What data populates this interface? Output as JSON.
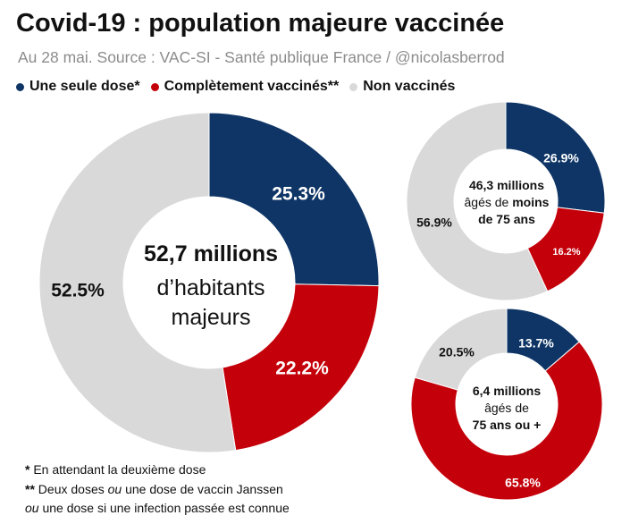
{
  "title": "Covid-19 : population majeure vaccinée",
  "subtitle": "Au 28 mai. Source : VAC-SI - Santé publique France / @nicolasberrod",
  "legend": [
    {
      "label": "Une seule dose*",
      "color": "#0e3566"
    },
    {
      "label": "Complètement vaccinés**",
      "color": "#c4000a"
    },
    {
      "label": "Non vaccinés",
      "color": "#d9d9d9"
    }
  ],
  "colors": {
    "single": "#0e3566",
    "full": "#c4000a",
    "none": "#d9d9d9"
  },
  "chart_data": [
    {
      "type": "pie",
      "name": "total",
      "center_label": [
        "52,7 millions",
        "d’habitants",
        "majeurs"
      ],
      "categories": [
        "Une seule dose*",
        "Complètement vaccinés**",
        "Non vaccinés"
      ],
      "values": [
        25.3,
        22.2,
        52.5
      ],
      "value_labels": [
        "25.3%",
        "22.2%",
        "52.5%"
      ]
    },
    {
      "type": "pie",
      "name": "under75",
      "center_label": [
        "46,3 millions",
        "âgés de ",
        "moins",
        "de 75 ans"
      ],
      "categories": [
        "Une seule dose*",
        "Complètement vaccinés**",
        "Non vaccinés"
      ],
      "values": [
        26.9,
        16.2,
        56.9
      ],
      "value_labels": [
        "26.9%",
        "16.2%",
        "56.9%"
      ]
    },
    {
      "type": "pie",
      "name": "over75",
      "center_label": [
        "6,4 millions",
        "âgés de",
        "75 ans ou +"
      ],
      "categories": [
        "Une seule dose*",
        "Complètement vaccinés**",
        "Non vaccinés"
      ],
      "values": [
        13.7,
        65.8,
        20.5
      ],
      "value_labels": [
        "13.7%",
        "65.8%",
        "20.5%"
      ]
    }
  ],
  "footnotes": {
    "note1_marker": "*",
    "note1_text": " En attendant la deuxième dose",
    "note2_marker": "**",
    "note2_a": " Deux doses ",
    "note2_ou1": "ou",
    "note2_b": " une dose de vaccin Janssen",
    "note2_ou2": "ou",
    "note2_c": " une dose si une infection passée est connue"
  }
}
